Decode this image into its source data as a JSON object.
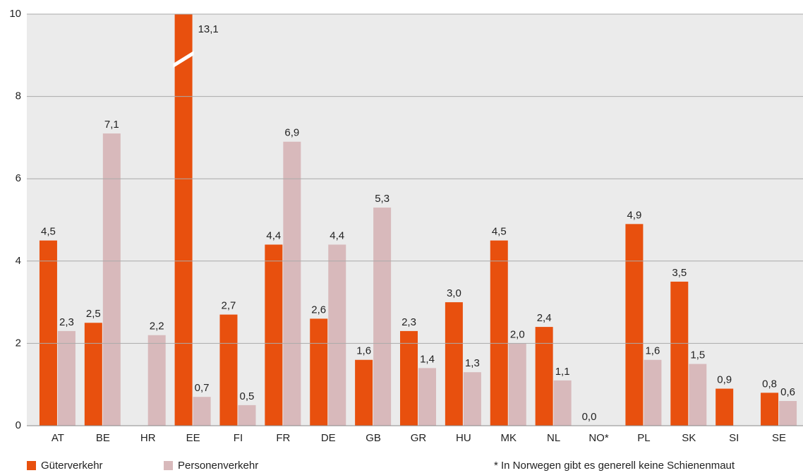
{
  "chart_data": {
    "type": "bar",
    "categories": [
      "AT",
      "BE",
      "HR",
      "EE",
      "FI",
      "FR",
      "DE",
      "GB",
      "GR",
      "HU",
      "MK",
      "NL",
      "NO*",
      "PL",
      "SK",
      "SI",
      "SE"
    ],
    "series": [
      {
        "name": "Güterverkehr",
        "color": "#e8500e",
        "values": [
          4.5,
          2.5,
          null,
          13.1,
          2.7,
          4.4,
          2.6,
          1.6,
          2.3,
          3.0,
          4.5,
          2.4,
          0.0,
          4.9,
          3.5,
          0.9,
          0.8
        ],
        "value_labels": [
          "4,5",
          "2,5",
          null,
          "13,1",
          "2,7",
          "4,4",
          "2,6",
          "1,6",
          "2,3",
          "3,0",
          "4,5",
          "2,4",
          "0,0",
          "4,9",
          "3,5",
          "0,9",
          "0,8"
        ]
      },
      {
        "name": "Personenverkehr",
        "color": "#d8b9bb",
        "values": [
          2.3,
          7.1,
          2.2,
          0.7,
          0.5,
          6.9,
          4.4,
          5.3,
          1.4,
          1.3,
          2.0,
          1.1,
          null,
          1.6,
          1.5,
          null,
          0.6
        ],
        "value_labels": [
          "2,3",
          "7,1",
          "2,2",
          "0,7",
          "0,5",
          "6,9",
          "4,4",
          "5,3",
          "1,4",
          "1,3",
          "2,0",
          "1,1",
          null,
          "1,6",
          "1,5",
          null,
          "0,6"
        ]
      }
    ],
    "ylim": [
      0,
      10
    ],
    "yticks": [
      0,
      2,
      4,
      6,
      8,
      10
    ],
    "grid": true,
    "footnote": "* In Norwegen gibt es generell keine Schienenmaut"
  }
}
